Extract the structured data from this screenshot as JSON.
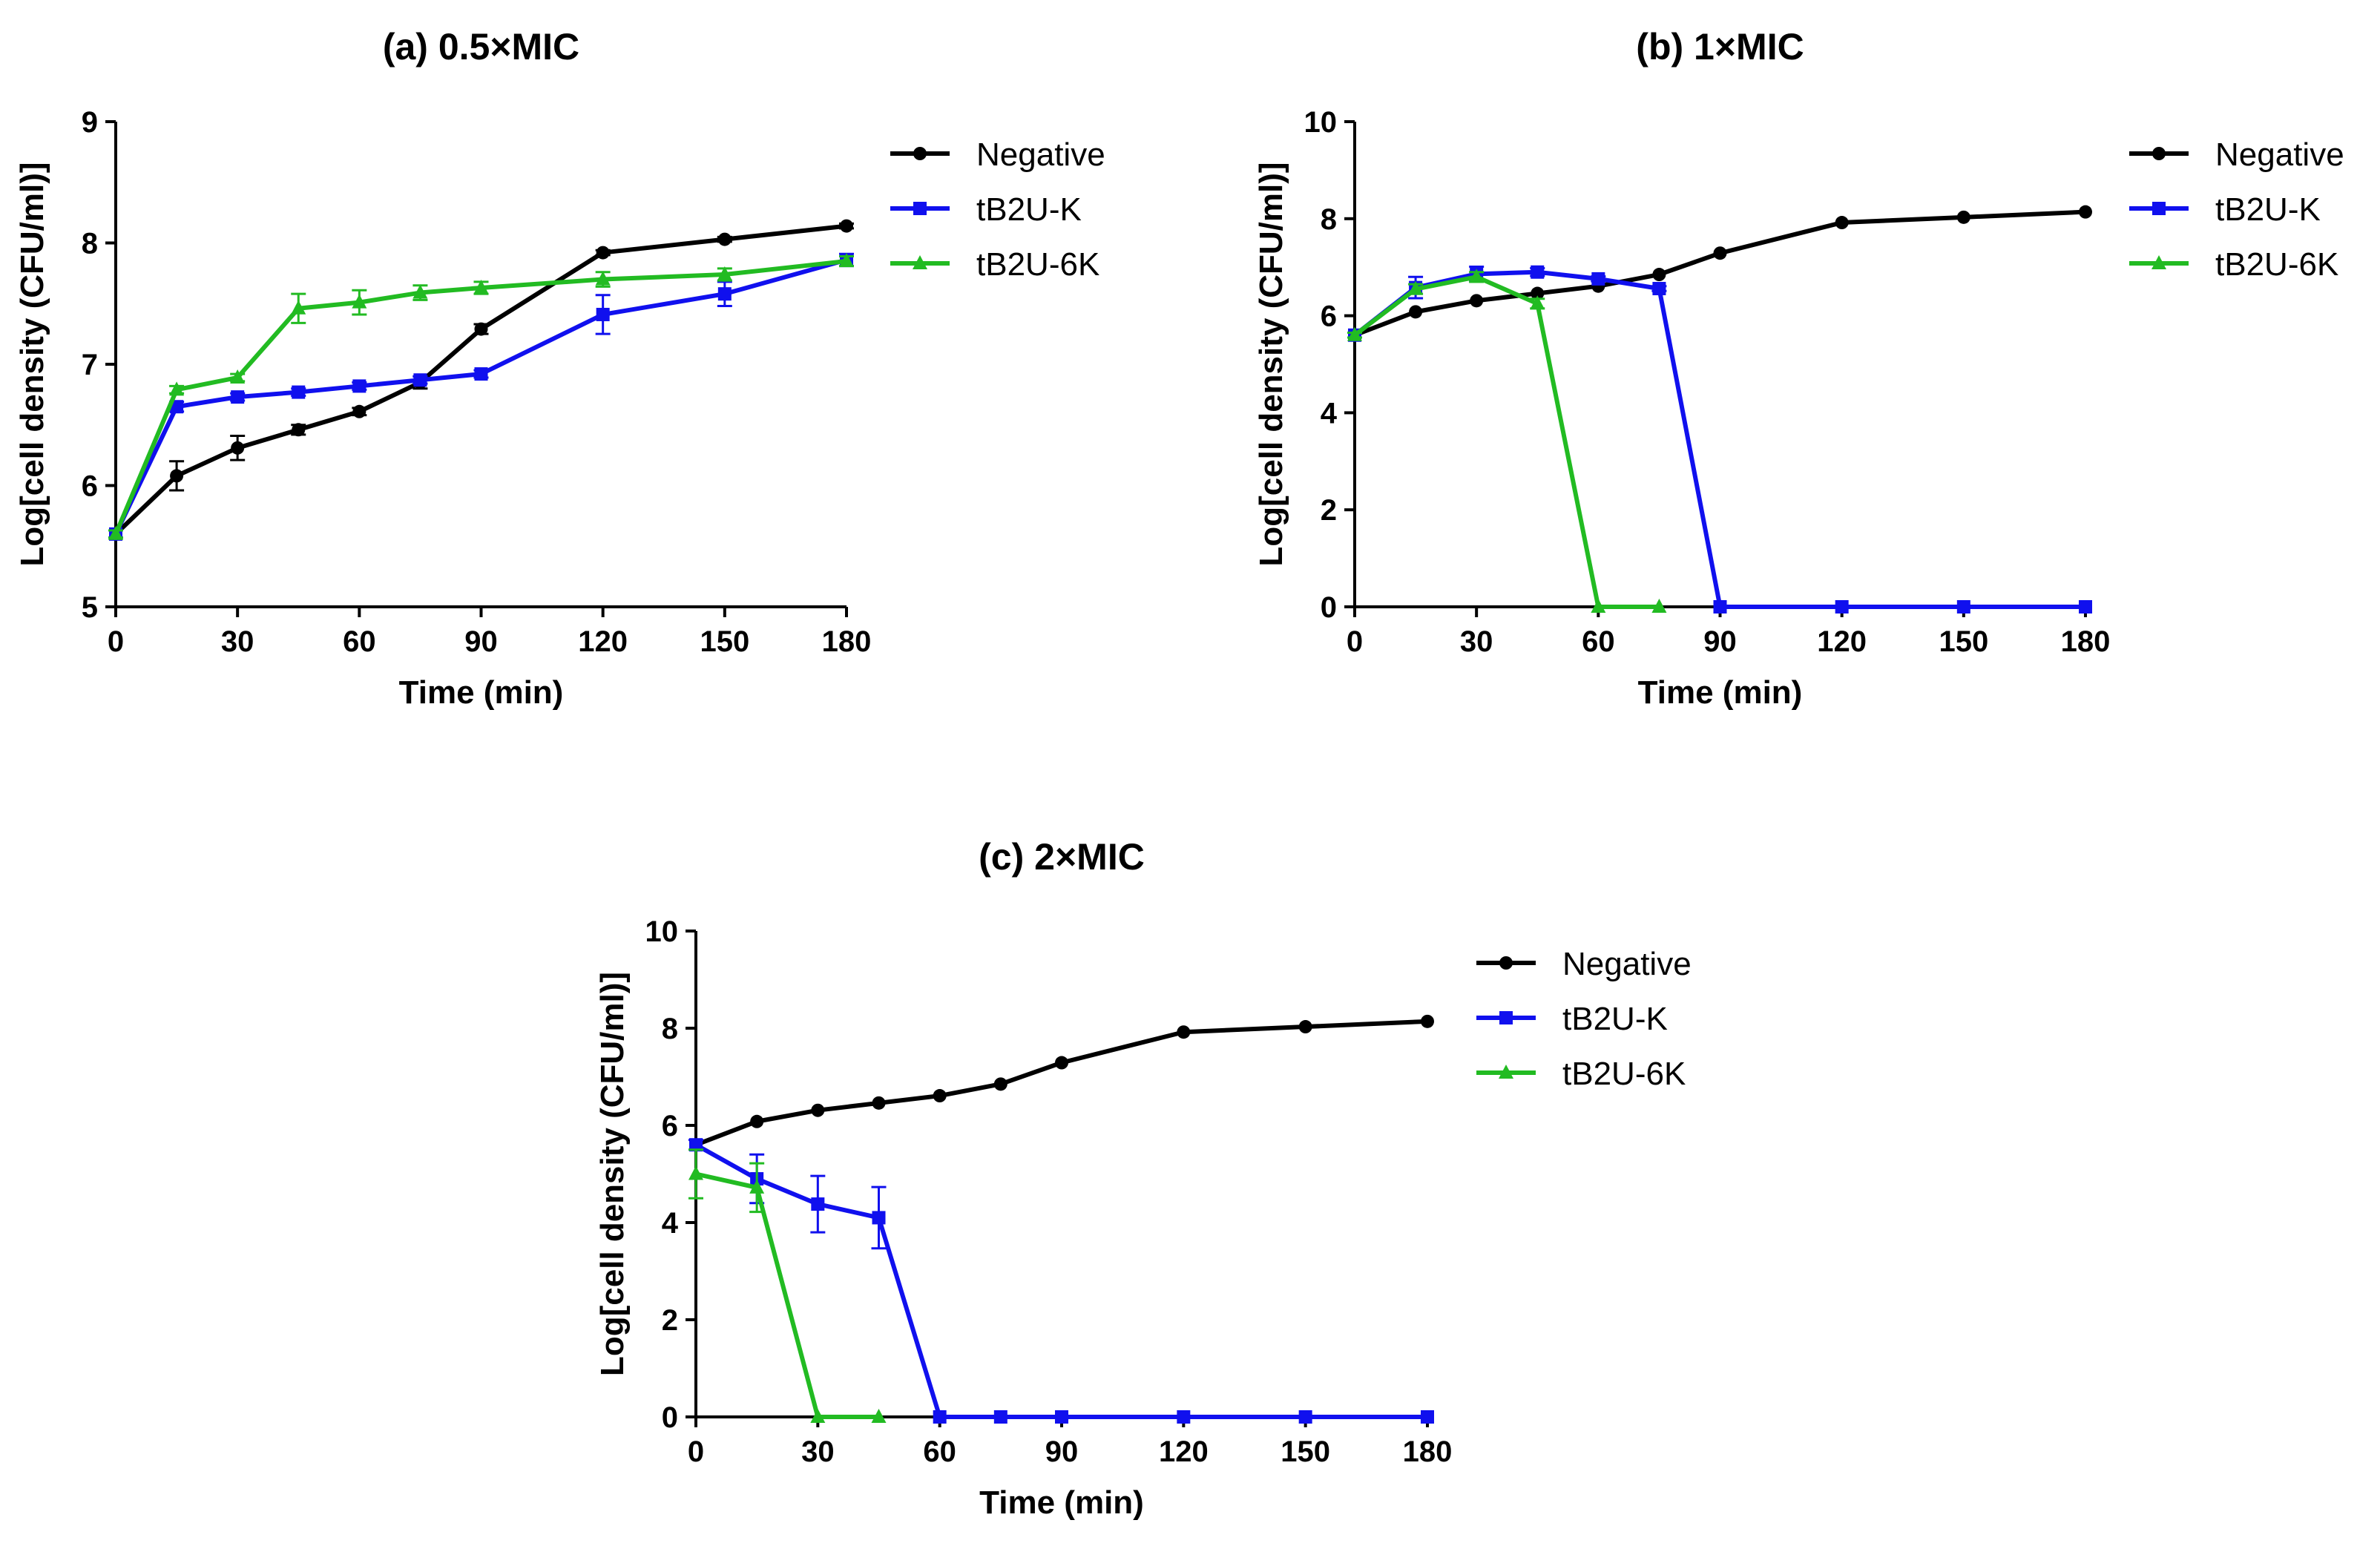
{
  "chart_data": [
    {
      "id": "a",
      "type": "line",
      "title": "(a) 0.5×MIC",
      "xlabel": "Time (min)",
      "ylabel": "Log[cell density (CFU/ml)]",
      "xlim": [
        0,
        180
      ],
      "ylim": [
        5,
        9
      ],
      "xticks": [
        0,
        30,
        60,
        90,
        120,
        150,
        180
      ],
      "yticks": [
        5,
        6,
        7,
        8,
        9
      ],
      "legend_position": "top-right",
      "series": [
        {
          "name": "Negative",
          "color": "#000000",
          "marker": "circle",
          "x": [
            0,
            15,
            30,
            45,
            60,
            75,
            90,
            120,
            150,
            180
          ],
          "y": [
            5.6,
            6.08,
            6.31,
            6.46,
            6.61,
            6.85,
            7.29,
            7.92,
            8.03,
            8.14
          ],
          "err": [
            0.03,
            0.12,
            0.1,
            0.04,
            0.03,
            0.05,
            0.04,
            0.02,
            0.02,
            0.02
          ]
        },
        {
          "name": "tB2U-K",
          "color": "#1010ee",
          "marker": "square",
          "x": [
            0,
            15,
            30,
            45,
            60,
            75,
            90,
            120,
            150,
            180
          ],
          "y": [
            5.6,
            6.65,
            6.73,
            6.77,
            6.82,
            6.87,
            6.92,
            7.41,
            7.58,
            7.86
          ],
          "err": [
            0.03,
            0.04,
            0.03,
            0.03,
            0.03,
            0.03,
            0.03,
            0.16,
            0.1,
            0.05
          ]
        },
        {
          "name": "tB2U-6K",
          "color": "#22bb22",
          "marker": "triangle",
          "x": [
            0,
            15,
            30,
            45,
            60,
            75,
            90,
            120,
            150,
            180
          ],
          "y": [
            5.6,
            6.79,
            6.89,
            7.46,
            7.51,
            7.59,
            7.63,
            7.7,
            7.74,
            7.85
          ],
          "err": [
            0.03,
            0.03,
            0.03,
            0.12,
            0.1,
            0.06,
            0.05,
            0.06,
            0.05,
            0.04
          ]
        }
      ]
    },
    {
      "id": "b",
      "type": "line",
      "title": "(b) 1×MIC",
      "xlabel": "Time (min)",
      "ylabel": "Log[cell density (CFU/ml)]",
      "xlim": [
        0,
        180
      ],
      "ylim": [
        0,
        10
      ],
      "xticks": [
        0,
        30,
        60,
        90,
        120,
        150,
        180
      ],
      "yticks": [
        0,
        2,
        4,
        6,
        8,
        10
      ],
      "legend_position": "top-right",
      "series": [
        {
          "name": "Negative",
          "color": "#000000",
          "marker": "circle",
          "x": [
            0,
            15,
            30,
            45,
            60,
            75,
            90,
            120,
            150,
            180
          ],
          "y": [
            5.6,
            6.08,
            6.31,
            6.46,
            6.61,
            6.85,
            7.29,
            7.92,
            8.03,
            8.14
          ],
          "err": [
            0,
            0,
            0,
            0,
            0,
            0,
            0,
            0,
            0,
            0
          ]
        },
        {
          "name": "tB2U-K",
          "color": "#1010ee",
          "marker": "square",
          "x": [
            0,
            15,
            30,
            45,
            60,
            75,
            90,
            120,
            150,
            180
          ],
          "y": [
            5.6,
            6.58,
            6.86,
            6.9,
            6.76,
            6.56,
            0,
            0,
            0,
            0
          ],
          "err": [
            0.05,
            0.22,
            0.15,
            0.08,
            0.05,
            0.05,
            0,
            0,
            0,
            0
          ]
        },
        {
          "name": "tB2U-6K",
          "color": "#22bb22",
          "marker": "triangle",
          "x": [
            0,
            15,
            30,
            45,
            60,
            75
          ],
          "y": [
            5.6,
            6.55,
            6.8,
            6.25,
            0,
            0
          ],
          "err": [
            0.05,
            0.1,
            0.1,
            0.1,
            0,
            0
          ]
        }
      ]
    },
    {
      "id": "c",
      "type": "line",
      "title": "(c) 2×MIC",
      "xlabel": "Time (min)",
      "ylabel": "Log[cell density (CFU/ml)]",
      "xlim": [
        0,
        180
      ],
      "ylim": [
        0,
        10
      ],
      "xticks": [
        0,
        30,
        60,
        90,
        120,
        150,
        180
      ],
      "yticks": [
        0,
        2,
        4,
        6,
        8,
        10
      ],
      "legend_position": "top-right",
      "series": [
        {
          "name": "Negative",
          "color": "#000000",
          "marker": "circle",
          "x": [
            0,
            15,
            30,
            45,
            60,
            75,
            90,
            120,
            150,
            180
          ],
          "y": [
            5.6,
            6.08,
            6.31,
            6.46,
            6.61,
            6.85,
            7.29,
            7.92,
            8.03,
            8.14
          ],
          "err": [
            0,
            0,
            0,
            0,
            0,
            0,
            0,
            0,
            0,
            0
          ]
        },
        {
          "name": "tB2U-K",
          "color": "#1010ee",
          "marker": "square",
          "x": [
            0,
            15,
            30,
            45,
            60,
            75,
            90,
            120,
            150,
            180
          ],
          "y": [
            5.6,
            4.9,
            4.38,
            4.1,
            0,
            0,
            0,
            0,
            0,
            0
          ],
          "err": [
            0.1,
            0.5,
            0.58,
            0.63,
            0,
            0,
            0,
            0,
            0,
            0
          ]
        },
        {
          "name": "tB2U-6K",
          "color": "#22bb22",
          "marker": "triangle",
          "x": [
            0,
            15,
            30,
            45
          ],
          "y": [
            5.0,
            4.72,
            0,
            0
          ],
          "err": [
            0.5,
            0.5,
            0,
            0
          ]
        }
      ]
    }
  ]
}
